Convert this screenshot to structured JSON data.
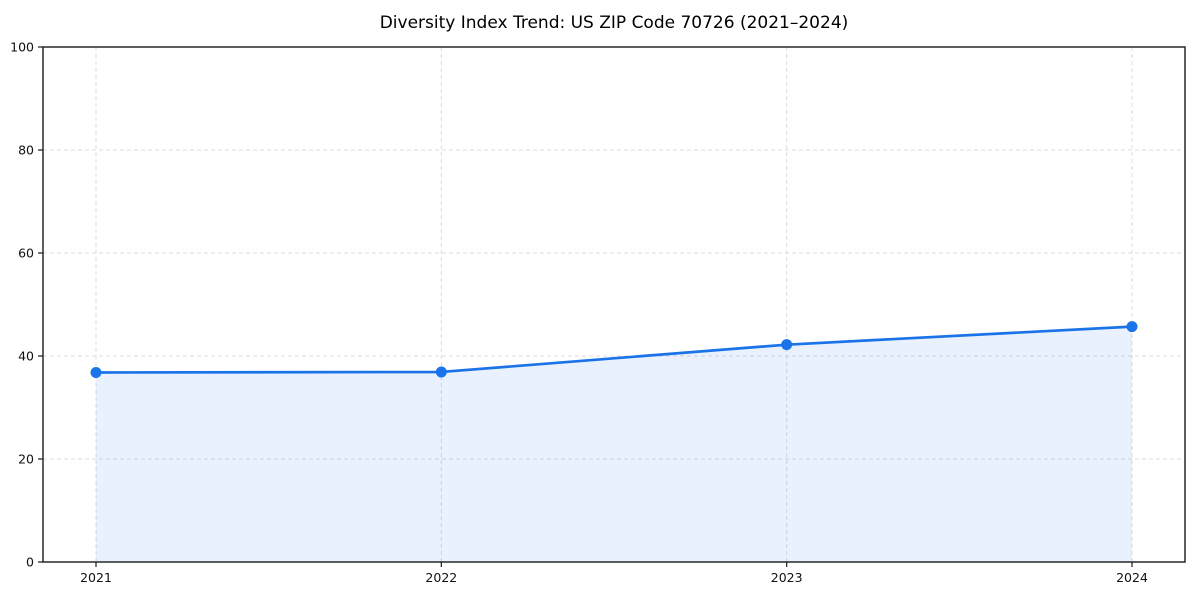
{
  "chart_data": {
    "type": "line",
    "title": "Diversity Index Trend: US ZIP Code 70726 (2021–2024)",
    "x": [
      "2021",
      "2022",
      "2023",
      "2024"
    ],
    "series": [
      {
        "name": "Diversity Index",
        "values": [
          36.8,
          36.9,
          42.2,
          45.7
        ]
      }
    ],
    "xlabel": "",
    "ylabel": "",
    "ylim": [
      0,
      100
    ],
    "yticks": [
      0,
      20,
      40,
      60,
      80,
      100
    ],
    "grid": true,
    "grid_style": "dashed",
    "legend_position": "none",
    "area_fill_under_line": true,
    "colors": {
      "line": "#1a73e8",
      "marker": "#1a73e8",
      "area_fill": "rgba(26, 115, 232, 0.10)",
      "grid": "#dcdcdc",
      "axis": "#1a1a1a",
      "tick_text": "#111111",
      "background": "#ffffff"
    }
  }
}
